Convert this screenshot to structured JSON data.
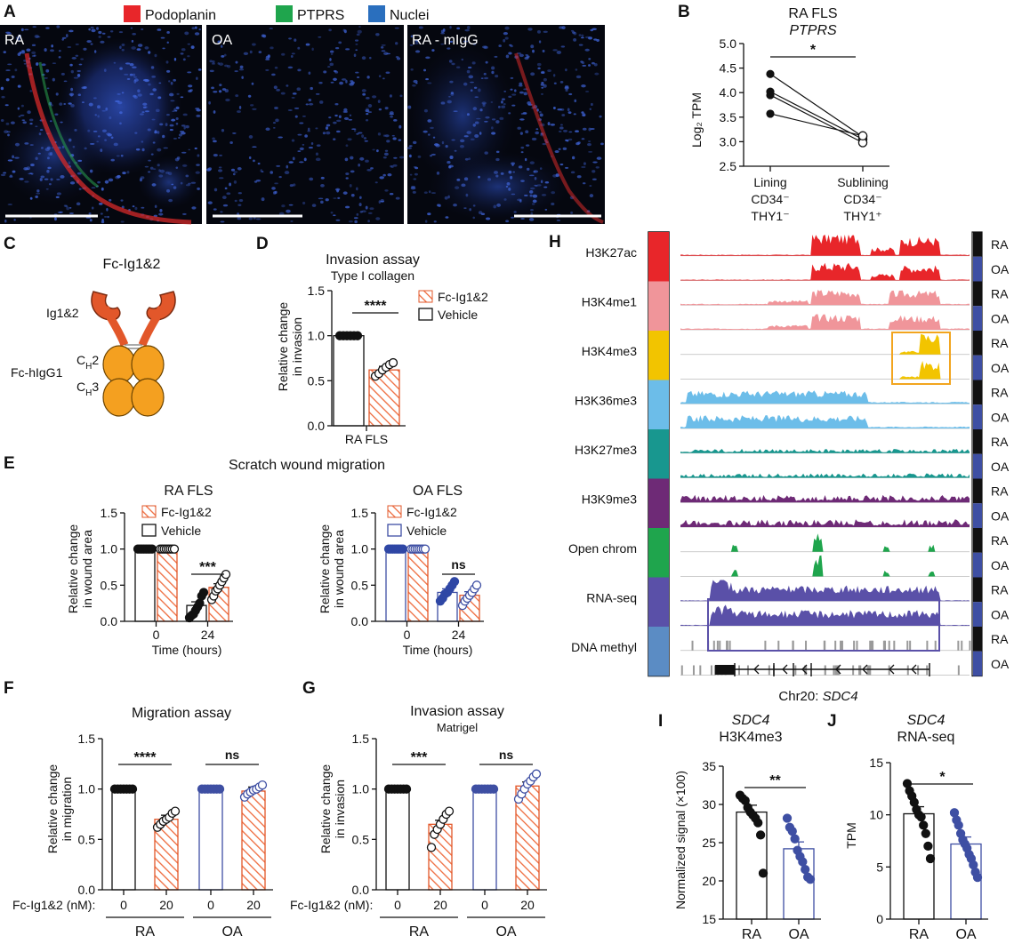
{
  "panels": {
    "A": {
      "label": "A",
      "legend": [
        {
          "name": "Podoplanin",
          "color": "#e8262a"
        },
        {
          "name": "PTPRS",
          "color": "#1fa54d"
        },
        {
          "name": "Nuclei",
          "color": "#2a6fbe"
        }
      ],
      "images": [
        "RA",
        "OA",
        "RA - mIgG"
      ]
    },
    "B": {
      "label": "B",
      "title": "RA FLS",
      "subtitle": "PTPRS",
      "ylabel": "Log₂ TPM",
      "sig": "*",
      "cat_lines": [
        [
          "Lining",
          "CD34⁻",
          "THY1⁻"
        ],
        [
          "Sublining",
          "CD34⁻",
          "THY1⁺"
        ]
      ]
    },
    "C": {
      "label": "C",
      "title": "Fc-Ig1&2",
      "ig_label": "Ig1&2",
      "fc_label": "Fc-hIgG1",
      "ch2": "C",
      "ch2_sub": "H",
      "ch2_num": "2",
      "ch3_num": "3"
    },
    "D": {
      "label": "D",
      "title": "Invasion assay",
      "subtitle": "Type I collagen",
      "ylabel1": "Relative change",
      "ylabel2": "in invasion",
      "legend": [
        "Fc-Ig1&2",
        "Vehicle"
      ],
      "sig": "****",
      "xcat": "RA FLS"
    },
    "E": {
      "label": "E",
      "title": "Scratch wound migration",
      "left_title": "RA FLS",
      "right_title": "OA FLS",
      "ylabel1": "Relative change",
      "ylabel2": "in wound area",
      "xlabel": "Time (hours)",
      "legend": [
        "Fc-Ig1&2",
        "Vehicle"
      ],
      "sig_left": "***",
      "sig_right": "ns"
    },
    "F": {
      "label": "F",
      "title": "Migration assay",
      "ylabel1": "Relative change",
      "ylabel2": "in migration",
      "dose_label": "Fc-Ig1&2 (nM):",
      "groups": [
        "RA",
        "OA"
      ],
      "sig": [
        "****",
        "ns"
      ]
    },
    "G": {
      "label": "G",
      "title": "Invasion assay",
      "subtitle": "Matrigel",
      "ylabel1": "Relative change",
      "ylabel2": "in invasion",
      "dose_label": "Fc-Ig1&2 (nM):",
      "groups": [
        "RA",
        "OA"
      ],
      "sig": [
        "***",
        "ns"
      ]
    },
    "H": {
      "label": "H",
      "tracks": [
        {
          "name": "H3K27ac",
          "color": "#e8262a"
        },
        {
          "name": "H3K4me1",
          "color": "#f0959a"
        },
        {
          "name": "H3K4me3",
          "color": "#f2c400"
        },
        {
          "name": "H3K36me3",
          "color": "#6cbde9"
        },
        {
          "name": "H3K27me3",
          "color": "#18978f"
        },
        {
          "name": "H3K9me3",
          "color": "#6e2a76"
        },
        {
          "name": "Open chrom",
          "color": "#1fa54d"
        },
        {
          "name": "RNA-seq",
          "color": "#5a50a8"
        },
        {
          "name": "DNA methyl",
          "color": "#5b8cc4"
        }
      ],
      "conditions": [
        "RA",
        "OA"
      ],
      "cond_colors": [
        "#111111",
        "#3e4fa3"
      ],
      "locus_prefix": "Chr20: ",
      "locus_gene": "SDC4"
    },
    "I": {
      "label": "I",
      "title": "SDC4",
      "subtitle": "H3K4me3",
      "ylabel": "Normalized signal (×100)",
      "sig": "**",
      "cats": [
        "RA",
        "OA"
      ]
    },
    "J": {
      "label": "J",
      "title": "SDC4",
      "subtitle": "RNA-seq",
      "ylabel": "TPM",
      "sig": "*",
      "cats": [
        "RA",
        "OA"
      ]
    }
  },
  "chart_data": [
    {
      "panel": "B",
      "type": "scatter",
      "categories": [
        "Lining CD34⁻ THY1⁻",
        "Sublining CD34⁻ THY1⁺"
      ],
      "paired": [
        [
          4.38,
          3.1
        ],
        [
          4.02,
          3.05
        ],
        [
          3.95,
          2.98
        ],
        [
          3.57,
          3.12
        ]
      ],
      "ylim": [
        2.5,
        5.0
      ],
      "yticks": [
        2.5,
        3.0,
        3.5,
        4.0,
        4.5,
        5.0
      ]
    },
    {
      "panel": "D",
      "type": "bar",
      "categories": [
        "RA FLS"
      ],
      "series": [
        {
          "name": "Vehicle",
          "values": [
            1.0
          ],
          "points": [
            1,
            1,
            1,
            1,
            1,
            1
          ]
        },
        {
          "name": "Fc-Ig1&2",
          "values": [
            0.62
          ],
          "points": [
            0.55,
            0.58,
            0.62,
            0.65,
            0.68,
            0.7
          ]
        }
      ],
      "ylim": [
        0,
        1.5
      ],
      "yticks": [
        0.0,
        0.5,
        1.0,
        1.5
      ]
    },
    {
      "panel": "E-RA",
      "type": "bar",
      "categories": [
        "0",
        "24"
      ],
      "series": [
        {
          "name": "Vehicle",
          "values": [
            1.0,
            0.22
          ],
          "points0": [
            1,
            1,
            1,
            1,
            1,
            1,
            1,
            1
          ],
          "points24": [
            0.05,
            0.08,
            0.1,
            0.15,
            0.2,
            0.25,
            0.35,
            0.4
          ]
        },
        {
          "name": "Fc-Ig1&2",
          "values": [
            1.0,
            0.47
          ],
          "points0": [
            1,
            1,
            1,
            1,
            1,
            1,
            1,
            1
          ],
          "points24": [
            0.3,
            0.35,
            0.42,
            0.45,
            0.5,
            0.55,
            0.6,
            0.65
          ]
        }
      ],
      "ylim": [
        0,
        1.5
      ],
      "yticks": [
        0.0,
        0.5,
        1.0,
        1.5
      ]
    },
    {
      "panel": "E-OA",
      "type": "bar",
      "categories": [
        "0",
        "24"
      ],
      "series": [
        {
          "name": "Vehicle",
          "values": [
            1.0,
            0.4
          ],
          "points0": [
            1,
            1,
            1,
            1,
            1,
            1,
            1,
            1
          ],
          "points24": [
            0.28,
            0.32,
            0.38,
            0.4,
            0.45,
            0.5,
            0.55
          ]
        },
        {
          "name": "Fc-Ig1&2",
          "values": [
            1.0,
            0.36
          ],
          "points0": [
            1,
            1,
            1,
            1,
            1,
            1,
            1,
            1
          ],
          "points24": [
            0.22,
            0.28,
            0.32,
            0.36,
            0.4,
            0.45,
            0.5
          ]
        }
      ],
      "ylim": [
        0,
        1.5
      ],
      "yticks": [
        0.0,
        0.5,
        1.0,
        1.5
      ]
    },
    {
      "panel": "F",
      "type": "bar",
      "categories": [
        "RA 0",
        "RA 20",
        "OA 0",
        "OA 20"
      ],
      "values": [
        1.0,
        0.7,
        1.0,
        0.98
      ],
      "points": [
        [
          1,
          1,
          1,
          1,
          1,
          1,
          1
        ],
        [
          0.62,
          0.65,
          0.68,
          0.7,
          0.72,
          0.76,
          0.78
        ],
        [
          1,
          1,
          1,
          1,
          1,
          1,
          1
        ],
        [
          0.92,
          0.95,
          0.97,
          0.99,
          1.0,
          1.02,
          1.04
        ]
      ],
      "ylim": [
        0,
        1.5
      ],
      "yticks": [
        0.0,
        0.5,
        1.0,
        1.5
      ]
    },
    {
      "panel": "G",
      "type": "bar",
      "categories": [
        "RA 0",
        "RA 20",
        "OA 0",
        "OA 20"
      ],
      "values": [
        1.0,
        0.65,
        1.0,
        1.03
      ],
      "points": [
        [
          1,
          1,
          1,
          1,
          1,
          1,
          1
        ],
        [
          0.42,
          0.55,
          0.6,
          0.65,
          0.7,
          0.75,
          0.78
        ],
        [
          1,
          1,
          1,
          1,
          1,
          1,
          1
        ],
        [
          0.9,
          0.95,
          1.0,
          1.05,
          1.08,
          1.12,
          1.15
        ]
      ],
      "ylim": [
        0,
        1.5
      ],
      "yticks": [
        0.0,
        0.5,
        1.0,
        1.5
      ]
    },
    {
      "panel": "I",
      "type": "bar",
      "categories": [
        "RA",
        "OA"
      ],
      "values": [
        29.0,
        24.2
      ],
      "points": [
        [
          31.2,
          30.8,
          30.5,
          29.6,
          29.0,
          28.6,
          28.2,
          27.6,
          26.0,
          21.0
        ],
        [
          28.2,
          27.0,
          26.5,
          25.5,
          24.0,
          23.2,
          22.5,
          21.5,
          20.5,
          20.2
        ]
      ],
      "ylim": [
        15,
        35
      ],
      "yticks": [
        15,
        20,
        25,
        30,
        35
      ]
    },
    {
      "panel": "J",
      "type": "bar",
      "categories": [
        "RA",
        "OA"
      ],
      "values": [
        10.1,
        7.2
      ],
      "points": [
        [
          13.0,
          12.3,
          11.8,
          11.2,
          10.5,
          10.0,
          9.8,
          9.0,
          8.2,
          7.0,
          5.8
        ],
        [
          10.2,
          9.5,
          9.0,
          8.2,
          7.6,
          7.2,
          6.8,
          6.2,
          5.8,
          5.2,
          4.5,
          4.0
        ]
      ],
      "ylim": [
        0,
        15
      ],
      "yticks": [
        0,
        5,
        10,
        15
      ]
    }
  ]
}
